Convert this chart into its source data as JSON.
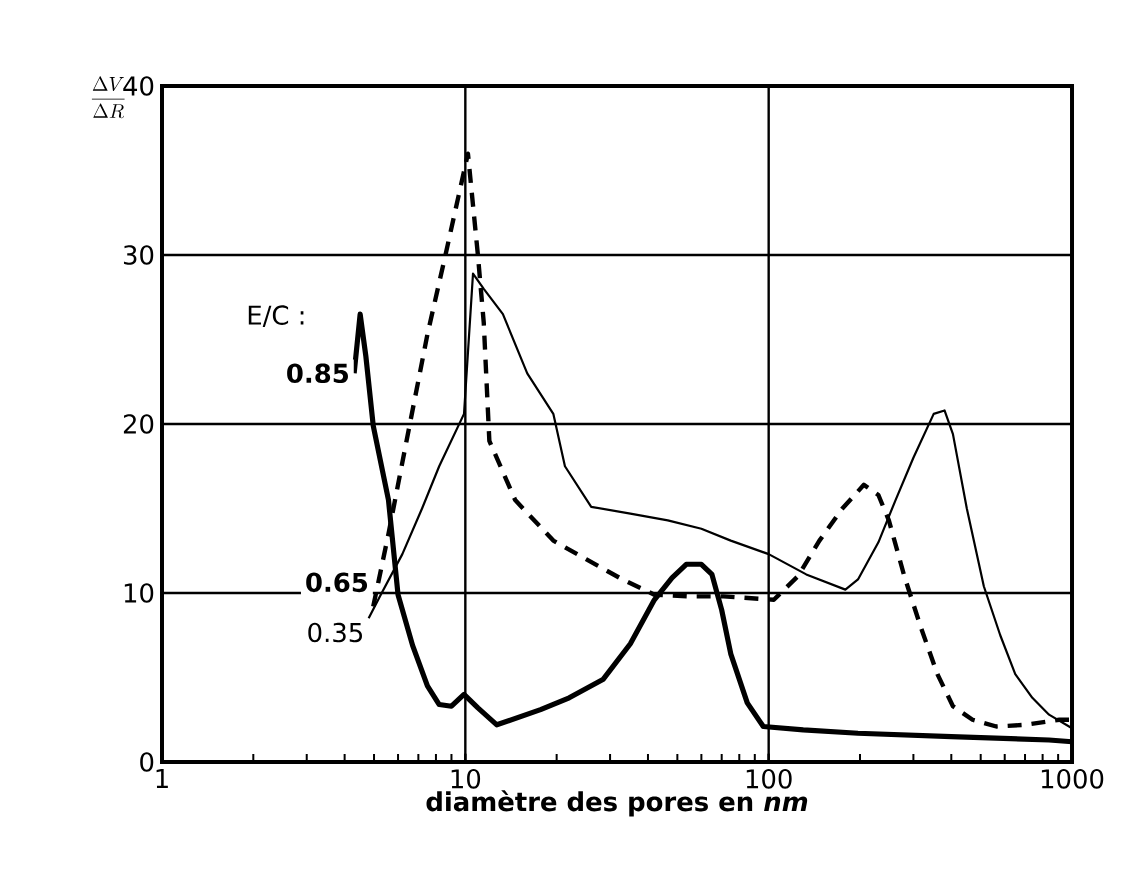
{
  "chart_data": {
    "type": "line",
    "xlabel": "diamètre des pores en *nm*",
    "ylabel": "\\frac{\\Delta V}{\\Delta R}",
    "legend_title": "E/C :",
    "log": "x",
    "grid": true,
    "xlim": [
      1,
      1000
    ],
    "ylim": [
      0,
      40
    ],
    "xticks": [
      1,
      10,
      100,
      1000
    ],
    "yticks": [
      0,
      10,
      20,
      30,
      40
    ],
    "series": [
      {
        "name": "0.35",
        "color": "#000000",
        "line_style": "solid",
        "x": [
          4.8,
          5.3,
          6.2,
          7.2,
          8.2,
          9.9,
          10.6,
          11.5,
          13.3,
          16,
          19.5,
          21.3,
          26,
          35,
          46.5,
          60,
          75,
          100,
          133,
          179,
          197,
          230,
          262,
          300,
          350,
          380,
          405,
          450,
          512,
          580,
          650,
          740,
          840,
          1000
        ],
        "values": [
          8.5,
          10,
          12.3,
          15,
          17.5,
          20.6,
          28.9,
          28,
          26.5,
          23,
          20.6,
          17.5,
          15.1,
          14.7,
          14.3,
          13.8,
          13.1,
          12.3,
          11.1,
          10.2,
          10.8,
          13,
          15.5,
          18,
          20.6,
          20.8,
          19.4,
          15,
          10.4,
          7.5,
          5.2,
          3.8,
          2.8,
          2.0
        ]
      },
      {
        "name": "0.65",
        "color": "#000000",
        "line_style": "dashed",
        "x": [
          4.97,
          5.58,
          6.4,
          7.5,
          8.6,
          9.5,
          10.2,
          11,
          11.5,
          12,
          14.6,
          19.5,
          25,
          33,
          42,
          55,
          71,
          104,
          125,
          147,
          175,
          206,
          230,
          249,
          280,
          317,
          360,
          405,
          470,
          563,
          700,
          908,
          1000
        ],
        "values": [
          9.2,
          13.5,
          19,
          25.3,
          30,
          33.5,
          36,
          30,
          26,
          19,
          15.5,
          13.1,
          12,
          10.8,
          9.9,
          9.8,
          9.8,
          9.6,
          11,
          13.1,
          15,
          16.4,
          15.8,
          14.3,
          11,
          8.0,
          5.2,
          3.3,
          2.5,
          2.1,
          2.2,
          2.5,
          2.5
        ]
      },
      {
        "name": "0.85",
        "color": "#000000",
        "line_style": "solid",
        "x": [
          4.3,
          4.5,
          4.7,
          4.97,
          5.58,
          6.0,
          6.7,
          7.5,
          8.2,
          9.0,
          9.9,
          11,
          12.7,
          17.7,
          22,
          28.5,
          35,
          42,
          48,
          53.5,
          60,
          65,
          70,
          75,
          85,
          96,
          130,
          197,
          400,
          840,
          1000
        ],
        "values": [
          23,
          26.5,
          24,
          19.9,
          15.5,
          9.9,
          6.9,
          4.5,
          3.4,
          3.3,
          4.0,
          3.2,
          2.2,
          3.1,
          3.8,
          4.9,
          7,
          9.6,
          10.9,
          11.7,
          11.7,
          11.1,
          9,
          6.4,
          3.5,
          2.1,
          1.9,
          1.7,
          1.5,
          1.3,
          1.2
        ]
      }
    ]
  }
}
